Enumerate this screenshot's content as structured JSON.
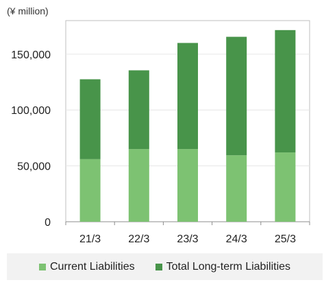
{
  "chart_data": {
    "type": "bar",
    "stacked": true,
    "unit_label": "(¥ million)",
    "categories": [
      "21/3",
      "22/3",
      "23/3",
      "24/3",
      "25/3"
    ],
    "series": [
      {
        "name": "Current Liabilities",
        "color": "#7dc272",
        "values": [
          56000,
          65000,
          65000,
          59500,
          62000
        ]
      },
      {
        "name": "Total Long-term Liabilities",
        "color": "#48944a",
        "values": [
          71500,
          70500,
          95000,
          106000,
          109500
        ]
      }
    ],
    "ylim": [
      0,
      180000
    ],
    "yticks": [
      0,
      50000,
      100000,
      150000
    ],
    "ytick_labels": [
      "0",
      "50,000",
      "100,000",
      "150,000"
    ],
    "grid": true,
    "legend_position": "bottom"
  }
}
